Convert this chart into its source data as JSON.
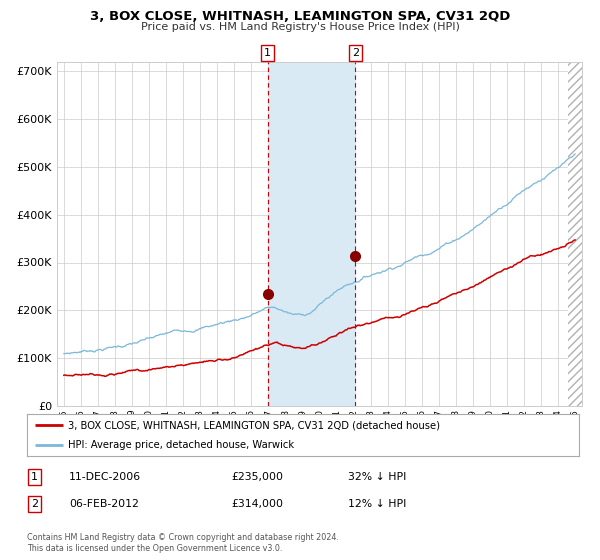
{
  "title": "3, BOX CLOSE, WHITNASH, LEAMINGTON SPA, CV31 2QD",
  "subtitle": "Price paid vs. HM Land Registry's House Price Index (HPI)",
  "legend_line1": "3, BOX CLOSE, WHITNASH, LEAMINGTON SPA, CV31 2QD (detached house)",
  "legend_line2": "HPI: Average price, detached house, Warwick",
  "annotation1_label": "1",
  "annotation1_date": "11-DEC-2006",
  "annotation1_price": "£235,000",
  "annotation1_hpi": "32% ↓ HPI",
  "annotation1_year": 2006.95,
  "annotation1_value": 235000,
  "annotation2_label": "2",
  "annotation2_date": "06-FEB-2012",
  "annotation2_price": "£314,000",
  "annotation2_hpi": "12% ↓ HPI",
  "annotation2_year": 2012.1,
  "annotation2_value": 314000,
  "hpi_color": "#7ab8d9",
  "price_color": "#cc0000",
  "dot_color": "#880000",
  "shade_color": "#daeaf5",
  "vline_color": "#cc0000",
  "grid_color": "#cccccc",
  "bg_color": "#ffffff",
  "ylim": [
    0,
    720000
  ],
  "yticks": [
    0,
    100000,
    200000,
    300000,
    400000,
    500000,
    600000,
    700000
  ],
  "xlim_start": 1994.6,
  "xlim_end": 2025.4,
  "hatch_start": 2024.6,
  "footer": "Contains HM Land Registry data © Crown copyright and database right 2024.\nThis data is licensed under the Open Government Licence v3.0."
}
